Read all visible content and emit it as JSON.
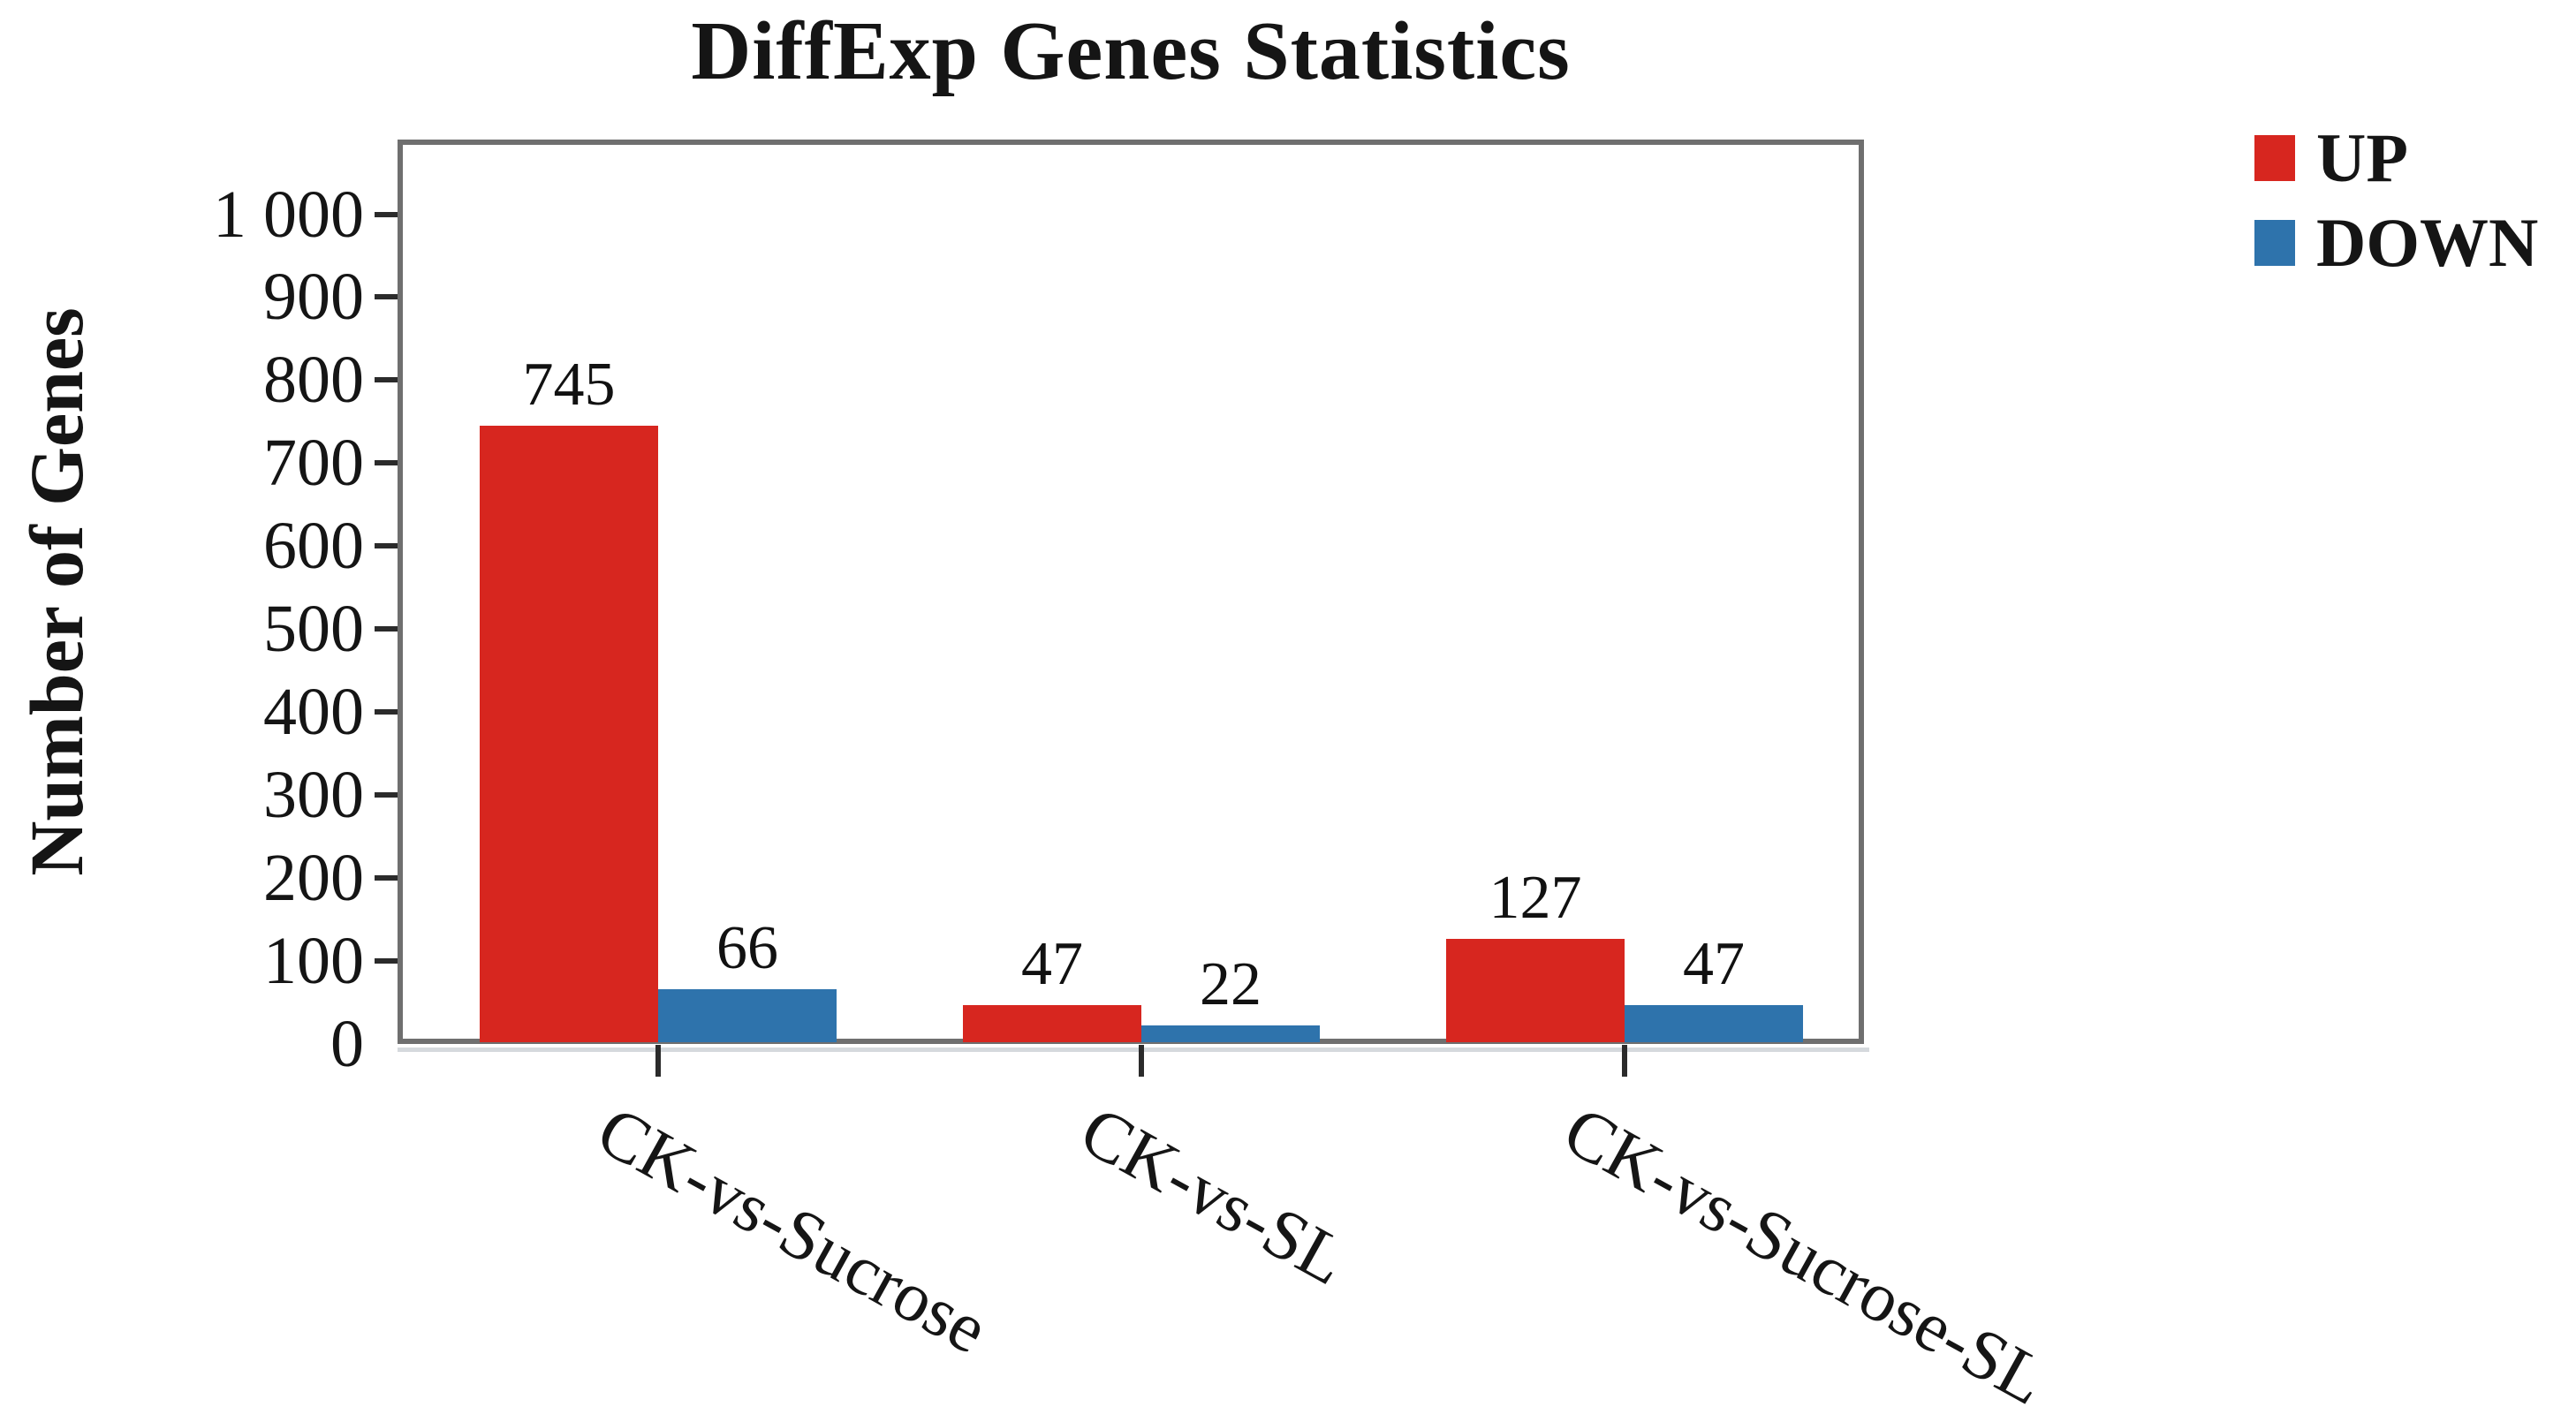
{
  "chart_data": {
    "type": "bar",
    "title": "DiffExp Genes Statistics",
    "xlabel": "",
    "ylabel": "Number of Genes",
    "categories": [
      "CK-vs-Sucrose",
      "CK-vs-SL",
      "CK-vs-Sucrose-SL"
    ],
    "series": [
      {
        "name": "UP",
        "color": "#d7261f",
        "values": [
          745,
          47,
          127
        ],
        "value_labels": [
          "745",
          "47",
          "127"
        ]
      },
      {
        "name": "DOWN",
        "color": "#2e73ac",
        "values": [
          66,
          22,
          47
        ],
        "value_labels": [
          "66",
          "22",
          "47"
        ]
      }
    ],
    "ylim": [
      0,
      1090
    ],
    "yticks": [
      0,
      100,
      200,
      300,
      400,
      500,
      600,
      700,
      800,
      900,
      1000
    ],
    "ytick_labels": [
      "0",
      "100",
      "200",
      "300",
      "400",
      "500",
      "600",
      "700",
      "800",
      "900",
      "1 000"
    ],
    "bar_value_labels_shown": true,
    "grid": false,
    "legend_position": "top-right",
    "frame_color": "#6f6f6f",
    "tick_color": "#2b2b2b",
    "text_color": "#151515"
  }
}
